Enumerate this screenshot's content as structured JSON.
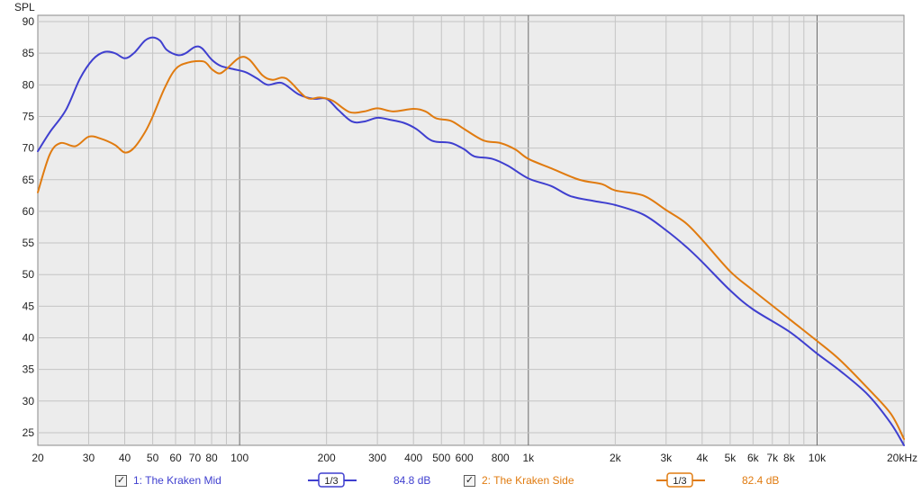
{
  "chart_data": {
    "type": "line",
    "ylabel": "SPL",
    "ylim": [
      23,
      91
    ],
    "xlim": [
      20,
      20000
    ],
    "xscale": "log",
    "grid": true,
    "yticks": [
      25,
      30,
      35,
      40,
      45,
      50,
      55,
      60,
      65,
      70,
      75,
      80,
      85,
      90
    ],
    "xticks": [
      {
        "v": 20,
        "label": "20"
      },
      {
        "v": 30,
        "label": "30"
      },
      {
        "v": 40,
        "label": "40"
      },
      {
        "v": 50,
        "label": "50"
      },
      {
        "v": 60,
        "label": "60"
      },
      {
        "v": 70,
        "label": "70"
      },
      {
        "v": 80,
        "label": "80"
      },
      {
        "v": 100,
        "label": "100"
      },
      {
        "v": 200,
        "label": "200"
      },
      {
        "v": 300,
        "label": "300"
      },
      {
        "v": 400,
        "label": "400"
      },
      {
        "v": 500,
        "label": "500"
      },
      {
        "v": 600,
        "label": "600"
      },
      {
        "v": 800,
        "label": "800"
      },
      {
        "v": 1000,
        "label": "1k"
      },
      {
        "v": 2000,
        "label": "2k"
      },
      {
        "v": 3000,
        "label": "3k"
      },
      {
        "v": 4000,
        "label": "4k"
      },
      {
        "v": 5000,
        "label": "5k"
      },
      {
        "v": 6000,
        "label": "6k"
      },
      {
        "v": 7000,
        "label": "7k"
      },
      {
        "v": 8000,
        "label": "8k"
      },
      {
        "v": 10000,
        "label": "10k"
      },
      {
        "v": 20000,
        "label": "20kHz"
      }
    ],
    "series": [
      {
        "name": "1: The Kraken Mid",
        "color": "#3f3fcf",
        "points": [
          [
            20,
            69.5
          ],
          [
            22,
            72.5
          ],
          [
            25,
            76
          ],
          [
            28,
            81
          ],
          [
            31,
            84
          ],
          [
            34,
            85.2
          ],
          [
            37,
            85
          ],
          [
            40,
            84.2
          ],
          [
            43,
            85
          ],
          [
            47,
            87
          ],
          [
            50,
            87.5
          ],
          [
            53,
            87
          ],
          [
            56,
            85.5
          ],
          [
            61,
            84.7
          ],
          [
            65,
            85
          ],
          [
            70,
            86
          ],
          [
            74,
            85.8
          ],
          [
            80,
            84
          ],
          [
            86,
            83
          ],
          [
            95,
            82.5
          ],
          [
            105,
            82
          ],
          [
            115,
            81
          ],
          [
            125,
            80
          ],
          [
            140,
            80.3
          ],
          [
            160,
            78.5
          ],
          [
            180,
            77.8
          ],
          [
            200,
            77.8
          ],
          [
            220,
            76
          ],
          [
            245,
            74.2
          ],
          [
            270,
            74.2
          ],
          [
            300,
            74.8
          ],
          [
            330,
            74.5
          ],
          [
            370,
            74
          ],
          [
            410,
            73
          ],
          [
            450,
            71.5
          ],
          [
            480,
            71
          ],
          [
            540,
            70.8
          ],
          [
            600,
            69.8
          ],
          [
            650,
            68.7
          ],
          [
            750,
            68.3
          ],
          [
            850,
            67.2
          ],
          [
            1000,
            65.2
          ],
          [
            1200,
            64
          ],
          [
            1400,
            62.4
          ],
          [
            1700,
            61.6
          ],
          [
            2000,
            61
          ],
          [
            2500,
            59.5
          ],
          [
            3000,
            57
          ],
          [
            3500,
            54.5
          ],
          [
            4000,
            52
          ],
          [
            5000,
            47.5
          ],
          [
            6000,
            44.5
          ],
          [
            8000,
            41
          ],
          [
            10000,
            37.5
          ],
          [
            12000,
            34.8
          ],
          [
            15000,
            31
          ],
          [
            18000,
            26.5
          ],
          [
            20000,
            23
          ]
        ]
      },
      {
        "name": "2: The Kraken Side",
        "color": "#e07b10",
        "points": [
          [
            20,
            63
          ],
          [
            22,
            69
          ],
          [
            24,
            70.8
          ],
          [
            27,
            70.3
          ],
          [
            30,
            71.8
          ],
          [
            33,
            71.5
          ],
          [
            37,
            70.5
          ],
          [
            40,
            69.3
          ],
          [
            43,
            70
          ],
          [
            47,
            72.5
          ],
          [
            50,
            75
          ],
          [
            55,
            79.5
          ],
          [
            60,
            82.5
          ],
          [
            66,
            83.5
          ],
          [
            75,
            83.7
          ],
          [
            80,
            82.5
          ],
          [
            85,
            81.8
          ],
          [
            90,
            82.5
          ],
          [
            100,
            84.3
          ],
          [
            108,
            84
          ],
          [
            120,
            81.5
          ],
          [
            130,
            80.8
          ],
          [
            145,
            81
          ],
          [
            170,
            78
          ],
          [
            190,
            78
          ],
          [
            210,
            77.5
          ],
          [
            240,
            75.7
          ],
          [
            270,
            75.8
          ],
          [
            300,
            76.3
          ],
          [
            340,
            75.8
          ],
          [
            400,
            76.2
          ],
          [
            440,
            75.8
          ],
          [
            480,
            74.7
          ],
          [
            540,
            74.3
          ],
          [
            600,
            73
          ],
          [
            700,
            71.2
          ],
          [
            800,
            70.8
          ],
          [
            900,
            69.8
          ],
          [
            1000,
            68.3
          ],
          [
            1200,
            66.8
          ],
          [
            1500,
            65
          ],
          [
            1800,
            64.3
          ],
          [
            2000,
            63.3
          ],
          [
            2500,
            62.5
          ],
          [
            3000,
            60.2
          ],
          [
            3500,
            58.2
          ],
          [
            4000,
            55.5
          ],
          [
            5000,
            50.5
          ],
          [
            6000,
            47.5
          ],
          [
            8000,
            43
          ],
          [
            10000,
            39.5
          ],
          [
            12000,
            36.5
          ],
          [
            15000,
            32
          ],
          [
            18000,
            28
          ],
          [
            20000,
            24
          ]
        ]
      }
    ]
  },
  "legend": [
    {
      "check": "✓",
      "label": "1: The Kraken Mid",
      "smoothing": "1/3",
      "level": "84.8 dB",
      "color": "#3f3fcf"
    },
    {
      "check": "✓",
      "label": "2: The Kraken Side",
      "smoothing": "1/3",
      "level": "82.4 dB",
      "color": "#e07b10"
    }
  ]
}
